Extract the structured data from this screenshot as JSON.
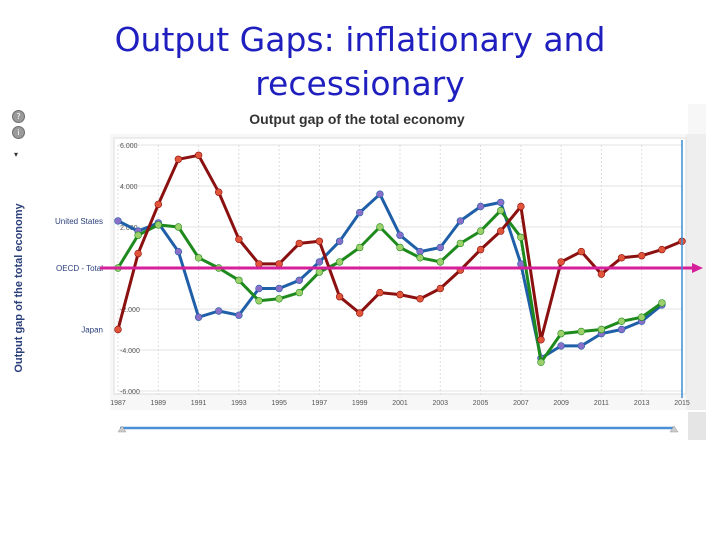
{
  "slide": {
    "title_line1": "Output Gaps: inflationary and",
    "title_line2": "recessionary"
  },
  "toolbar": {
    "help_glyph": "?",
    "info_glyph": "i",
    "arrow_glyph": "▾"
  },
  "colors": {
    "united_states": "#1f5fa8",
    "oecd_total": "#1e8a1e",
    "japan": "#8b1010",
    "us_marker": "#8a6fc8",
    "oecd_marker": "#9bd06a",
    "japan_marker": "#e0553a",
    "zero_line": "#d61f9a",
    "cursor_line": "#3b8ed6"
  },
  "chart_data": {
    "type": "line",
    "title": "Output gap of the total economy",
    "ylabel": "Output gap of the total economy",
    "xlabel": "",
    "x": [
      1987,
      1988,
      1989,
      1990,
      1991,
      1992,
      1993,
      1994,
      1995,
      1996,
      1997,
      1998,
      1999,
      2000,
      2001,
      2002,
      2003,
      2004,
      2005,
      2006,
      2007,
      2008,
      2009,
      2010,
      2011,
      2012,
      2013,
      2014,
      2015
    ],
    "ylim": [
      -6,
      6
    ],
    "yticks": [
      6,
      4,
      2,
      0,
      -2,
      -4,
      -6
    ],
    "ytick_labels": [
      "6.000",
      "4.000",
      "2.000",
      "",
      "-2.000",
      "-4.000",
      "-6.000"
    ],
    "xtick_labels": [
      "1987",
      "1989",
      "1991",
      "1993",
      "1995",
      "1997",
      "1999",
      "2001",
      "2003",
      "2005",
      "2007",
      "2009",
      "2011",
      "2013",
      "2015"
    ],
    "series": [
      {
        "name": "United States",
        "values": [
          2.3,
          1.8,
          2.2,
          0.8,
          -2.4,
          -2.1,
          -2.3,
          -1.0,
          -1.0,
          -0.6,
          0.3,
          1.3,
          2.7,
          3.6,
          1.6,
          0.8,
          1.0,
          2.3,
          3.0,
          3.2,
          0.2,
          -4.4,
          -3.8,
          -3.8,
          -3.2,
          -3.0,
          -2.6,
          -1.8,
          null
        ]
      },
      {
        "name": "OECD - Total",
        "values": [
          0.0,
          1.6,
          2.1,
          2.0,
          0.5,
          0.0,
          -0.6,
          -1.6,
          -1.5,
          -1.2,
          -0.2,
          0.3,
          1.0,
          2.0,
          1.0,
          0.5,
          0.3,
          1.2,
          1.8,
          2.8,
          1.5,
          -4.6,
          -3.2,
          -3.1,
          -3.0,
          -2.6,
          -2.4,
          -1.7,
          null
        ]
      },
      {
        "name": "Japan",
        "values": [
          -3.0,
          0.7,
          3.1,
          5.3,
          5.5,
          3.7,
          1.4,
          0.2,
          0.2,
          1.2,
          1.3,
          -1.4,
          -2.2,
          -1.2,
          -1.3,
          -1.5,
          -1.0,
          -0.1,
          0.9,
          1.8,
          3.0,
          -3.5,
          0.3,
          0.8,
          -0.3,
          0.5,
          0.6,
          0.9,
          1.3
        ]
      }
    ],
    "grid": true,
    "legend": "left, at line ends"
  }
}
